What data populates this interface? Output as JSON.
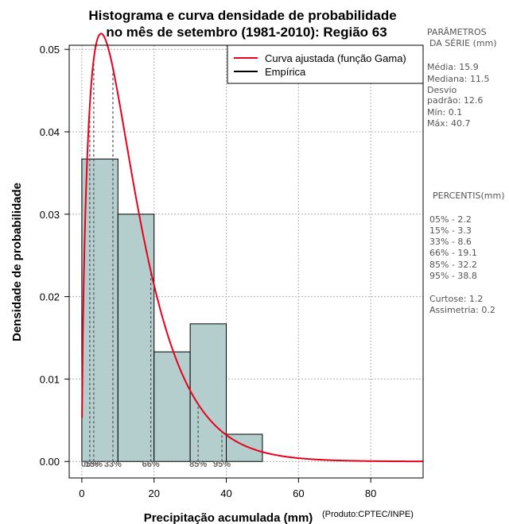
{
  "chart_data": {
    "type": "bar",
    "title_line1": "Histograma e curva densidade de probabilidade",
    "title_line2": "no mês de setembro (1981-2010): Região 63",
    "xlabel": "Precipitação acumulada (mm)",
    "ylabel": "Densidade de probabilidade",
    "credit": "(Produto:CPTEC/INPE)",
    "xlim": [
      -3.5,
      94.5
    ],
    "ylim": [
      -0.002,
      0.0505
    ],
    "x_ticks": [
      0,
      20,
      40,
      60,
      80
    ],
    "y_ticks": [
      "0.00",
      "0.01",
      "0.02",
      "0.03",
      "0.04",
      "0.05"
    ],
    "bins": [
      {
        "x0": 0,
        "x1": 10,
        "density": 0.0367
      },
      {
        "x0": 10,
        "x1": 20,
        "density": 0.03
      },
      {
        "x0": 20,
        "x1": 30,
        "density": 0.0133
      },
      {
        "x0": 30,
        "x1": 40,
        "density": 0.0167
      },
      {
        "x0": 40,
        "x1": 50,
        "density": 0.0033
      }
    ],
    "gamma_fit": {
      "shape": 1.62,
      "scale": 8.6,
      "name": "Curva ajustada (função Gama)"
    },
    "empirical_name": "Empírica",
    "percentile_lines": [
      {
        "x": 2.2,
        "label": "05%"
      },
      {
        "x": 3.3,
        "label": "15%"
      },
      {
        "x": 8.6,
        "label": "33%"
      },
      {
        "x": 19.1,
        "label": "66%"
      },
      {
        "x": 32.2,
        "label": "85%"
      },
      {
        "x": 38.8,
        "label": "95%"
      }
    ],
    "colors": {
      "bar": "#b4cecd",
      "curve": "#e8001c",
      "empirical": "#000000",
      "grid": "#b0b0b0",
      "pct_line": "#555555"
    }
  },
  "params": {
    "heading1": "PARÂMETROS",
    "heading2": "DA SÉRIE (mm)",
    "media": "Média:  15.9",
    "mediana": "Mediana:  11.5",
    "desvio1": "Desvio",
    "desvio2": "padrão:  12.6",
    "min": "Mín:  0.1",
    "max": "Máx:  40.7"
  },
  "percentis": {
    "heading": "PERCENTIS(mm)",
    "items": [
      "05% -   2.2",
      "15% -   3.3",
      "33% -   8.6",
      "66% -   19.1",
      "85% -   32.2",
      "95% -   38.8"
    ],
    "curtose": "Curtose:  1.2",
    "assimetria": "Assimetria:  0.2"
  }
}
